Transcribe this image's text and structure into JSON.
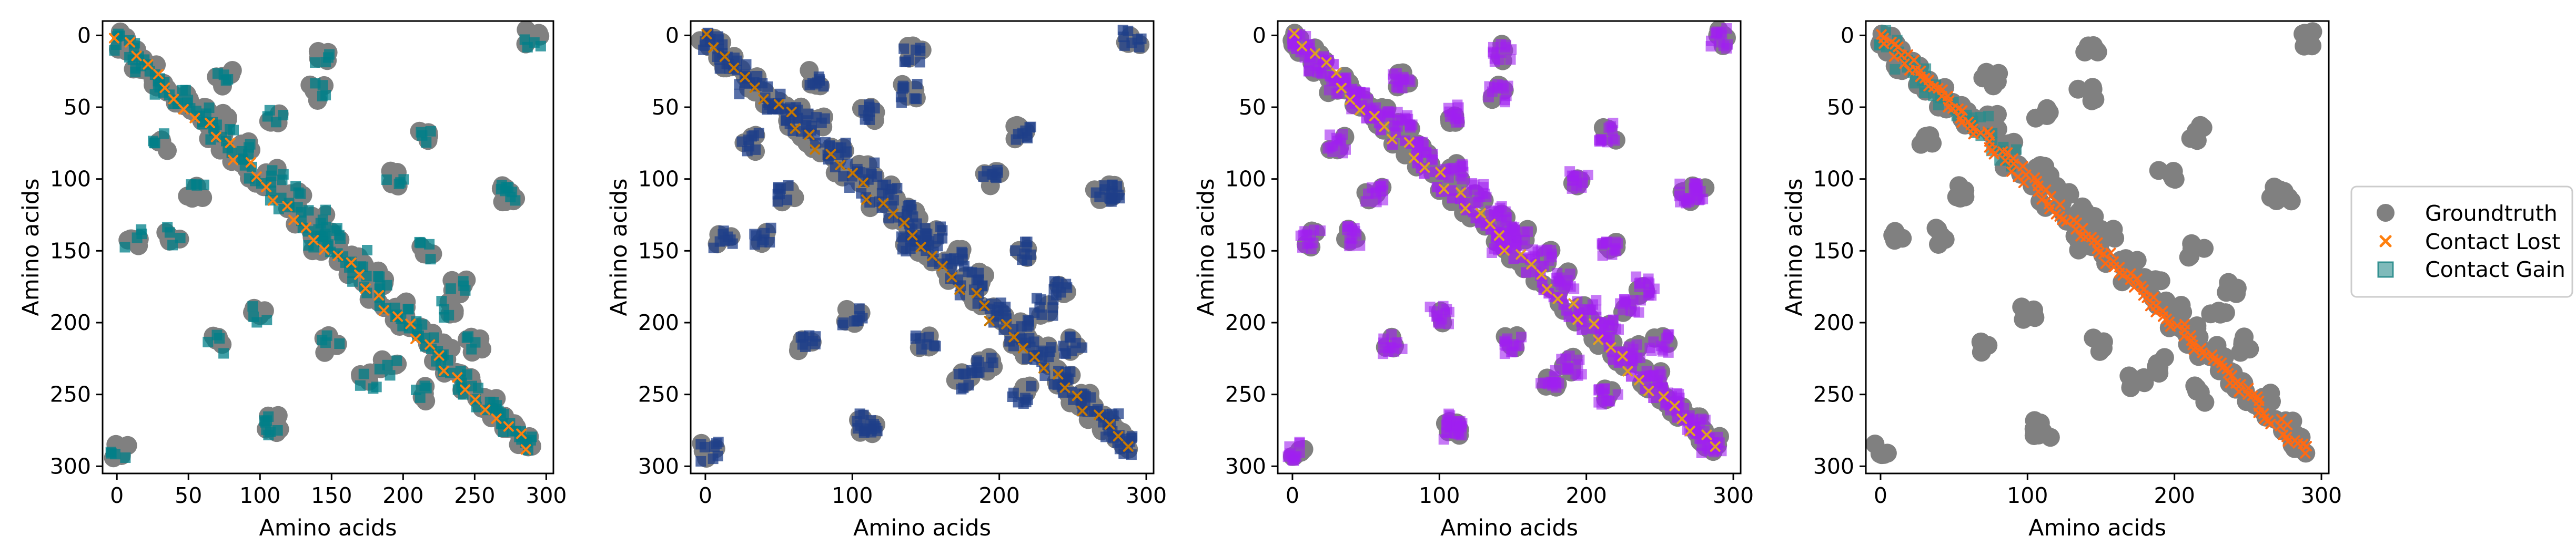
{
  "chart_data": [
    {
      "type": "scatter",
      "xlabel": "Amino acids",
      "ylabel": "Amino acids",
      "xlim": [
        -10,
        305
      ],
      "ylim": [
        305,
        -10
      ],
      "xticks": [
        0,
        50,
        100,
        150,
        200,
        250,
        300
      ],
      "yticks": [
        0,
        50,
        100,
        150,
        200,
        250,
        300
      ],
      "colors": {
        "groundtruth": "#808080",
        "lost": "#ff7f0e",
        "gain": "#007f88"
      }
    },
    {
      "type": "scatter",
      "xlabel": "Amino acids",
      "ylabel": "Amino acids",
      "xlim": [
        -10,
        305
      ],
      "ylim": [
        305,
        -10
      ],
      "xticks": [
        0,
        100,
        200,
        300
      ],
      "yticks": [
        0,
        50,
        100,
        150,
        200,
        250,
        300
      ],
      "colors": {
        "groundtruth": "#808080",
        "lost": "#c77700",
        "gain": "#1f3f8a"
      }
    },
    {
      "type": "scatter",
      "xlabel": "Amino acids",
      "ylabel": "Amino acids",
      "xlim": [
        -10,
        305
      ],
      "ylim": [
        305,
        -10
      ],
      "xticks": [
        0,
        100,
        200,
        300
      ],
      "yticks": [
        0,
        50,
        100,
        150,
        200,
        250,
        300
      ],
      "colors": {
        "groundtruth": "#808080",
        "lost": "#e0a020",
        "gain": "#a020f0"
      }
    },
    {
      "type": "scatter",
      "xlabel": "Amino acids",
      "ylabel": "Amino acids",
      "xlim": [
        -10,
        305
      ],
      "ylim": [
        305,
        -10
      ],
      "xticks": [
        0,
        100,
        200,
        300
      ],
      "yticks": [
        0,
        50,
        100,
        150,
        200,
        250,
        300
      ],
      "colors": {
        "groundtruth": "#808080",
        "lost": "#ff6a13",
        "gain": "#2a8c8c"
      }
    }
  ],
  "legend": {
    "placement": "right",
    "items": [
      {
        "label": "Groundtruth",
        "marker": "circle",
        "color": "#808080"
      },
      {
        "label": "Contact Lost",
        "marker": "x",
        "color": "#ff7f0e"
      },
      {
        "label": "Contact Gain",
        "marker": "square",
        "color": "#2a8c8c"
      }
    ]
  }
}
